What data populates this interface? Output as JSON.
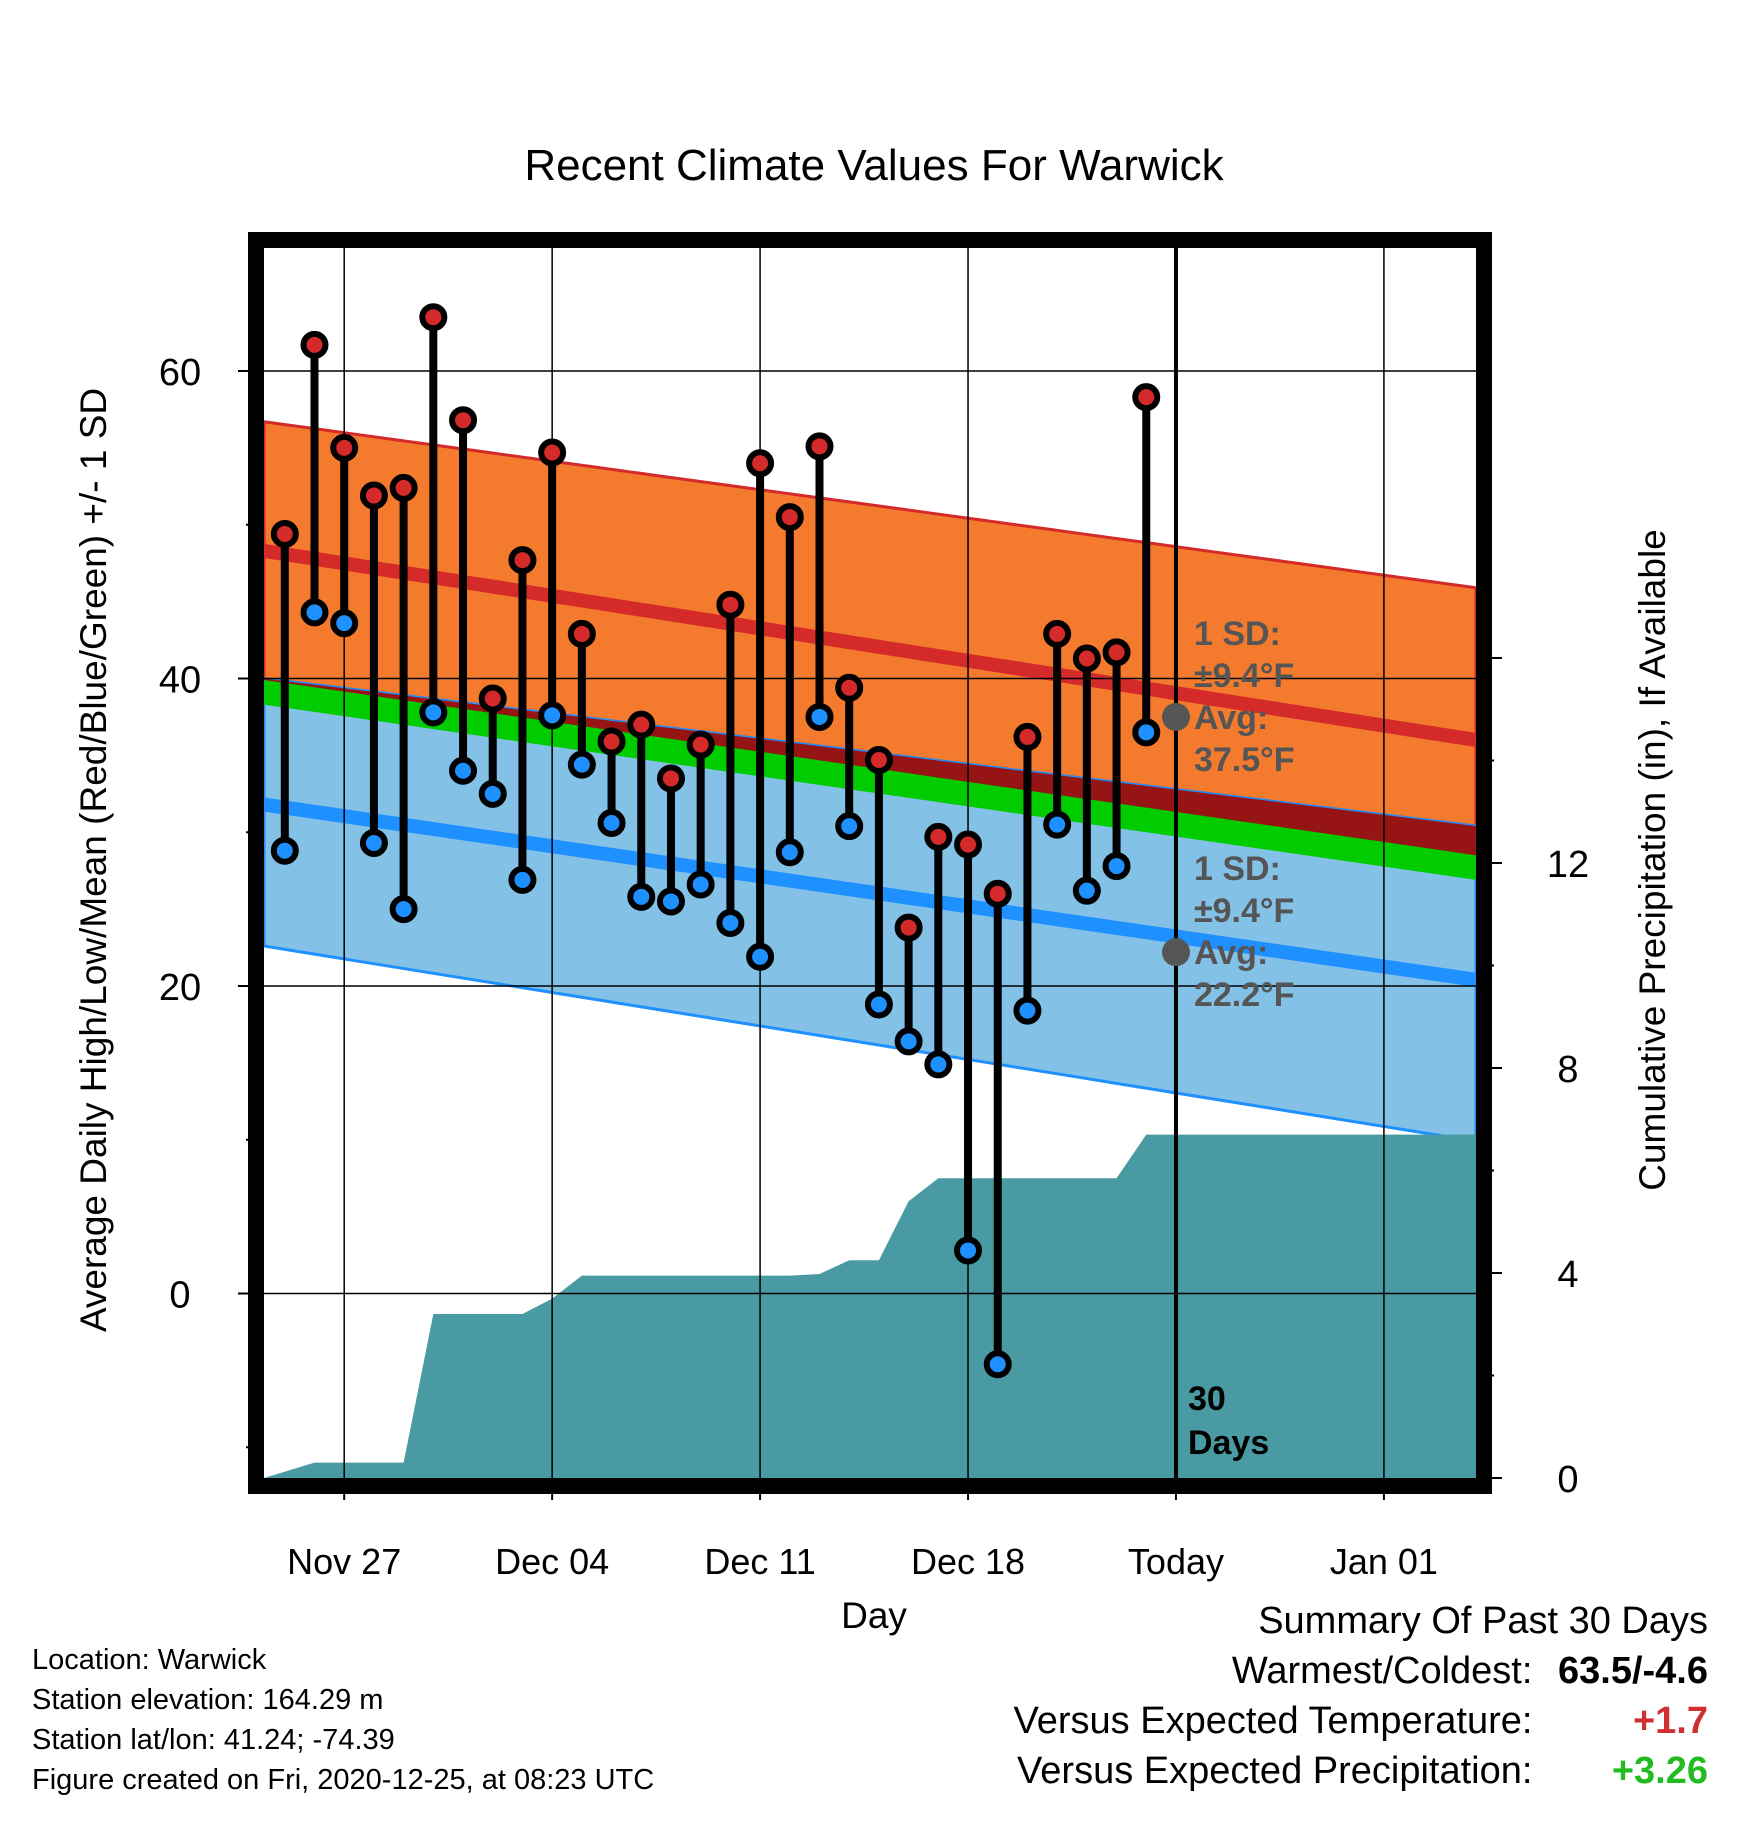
{
  "chart_data": {
    "type": "line",
    "title": "Recent Climate Values For Warwick",
    "xlabel": "Day",
    "ylabel": "Average Daily High/Low/Mean (Red/Blue/Green) +/- 1 SD",
    "y2label": "Cumulative Precipitation (in), If Available",
    "x_tick_labels": [
      "Nov 27",
      "Dec 04",
      "Dec 11",
      "Dec 18",
      "Today",
      "Jan 01"
    ],
    "y_ticks": [
      0,
      20,
      40,
      60
    ],
    "y2_ticks": [
      0,
      4,
      8,
      12
    ],
    "ylim": [
      -12,
      68
    ],
    "y2lim": [
      0,
      24
    ],
    "x_range_days_from_nov27": [
      -2.7,
      38.1
    ],
    "today_day": 28,
    "today_text": "30\nDays",
    "daily": {
      "day": [
        -2,
        -1,
        0,
        1,
        2,
        3,
        4,
        5,
        6,
        7,
        8,
        9,
        10,
        11,
        12,
        13,
        14,
        15,
        16,
        17,
        18,
        19,
        20,
        21,
        22,
        23,
        24,
        25,
        26,
        27
      ],
      "high": [
        49.4,
        61.7,
        55.0,
        51.9,
        52.4,
        63.5,
        56.8,
        38.7,
        47.7,
        54.7,
        42.9,
        35.9,
        37.0,
        33.5,
        35.7,
        44.8,
        54.0,
        50.5,
        55.1,
        39.4,
        34.7,
        23.8,
        29.7,
        29.2,
        26.0,
        36.2,
        42.9,
        41.3,
        41.7,
        58.3
      ],
      "low": [
        28.8,
        44.3,
        43.6,
        29.3,
        25.0,
        37.8,
        34.0,
        32.5,
        26.9,
        37.6,
        34.4,
        30.6,
        25.8,
        25.5,
        26.6,
        24.1,
        21.9,
        28.7,
        37.5,
        30.4,
        18.8,
        16.4,
        14.9,
        2.8,
        -4.6,
        18.4,
        30.5,
        26.2,
        27.8,
        36.5
      ]
    },
    "normals": {
      "day": [
        -2.7,
        38.1
      ],
      "high_avg": [
        48.3,
        36.0
      ],
      "high_upper": [
        56.7,
        45.9
      ],
      "high_lower": [
        40.0,
        30.4
      ],
      "low_avg": [
        31.8,
        20.4
      ],
      "low_upper": [
        40.0,
        30.4
      ],
      "low_lower": [
        22.6,
        9.9
      ],
      "mean_avg": [
        39.2,
        27.8
      ]
    },
    "precip": {
      "day": [
        -2.7,
        -1,
        0,
        1,
        2,
        3,
        4,
        5,
        6,
        7,
        8,
        9,
        10,
        11,
        12,
        13,
        14,
        15,
        16,
        17,
        18,
        19,
        20,
        21,
        22,
        23,
        24,
        25,
        26,
        27,
        28,
        38.1
      ],
      "cumulative": [
        0,
        0.3,
        0.3,
        0.3,
        0.3,
        3.2,
        3.2,
        3.2,
        3.2,
        3.5,
        3.95,
        3.95,
        3.95,
        3.95,
        3.95,
        3.95,
        3.95,
        3.95,
        3.98,
        4.25,
        4.25,
        5.4,
        5.85,
        5.85,
        5.85,
        5.85,
        5.85,
        5.85,
        5.85,
        6.7,
        6.7,
        6.7
      ]
    },
    "annotations": [
      {
        "line1": "1 SD:",
        "line2": "±9.4°F",
        "line3": "Avg:",
        "line4": "37.5°F",
        "value": 37.5
      },
      {
        "line1": "1 SD:",
        "line2": "±9.4°F",
        "line3": "Avg:",
        "line4": "22.2°F",
        "value": 22.2
      }
    ]
  },
  "info": {
    "location": "Location: Warwick",
    "elevation": "Station elevation: 164.29 m",
    "latlon": "Station lat/lon: 41.24; -74.39",
    "created": "Figure created on Fri, 2020-12-25, at 08:23 UTC"
  },
  "summary": {
    "title": "Summary Of Past 30 Days",
    "warm_label": "Warmest/Coldest:",
    "warm_value": "63.5/-4.6",
    "temp_label": "Versus Expected Temperature:",
    "temp_value": "+1.7",
    "precip_label": "Versus Expected Precipitation:",
    "precip_value": "+3.26"
  },
  "colors": {
    "high_band": "#f47a2e",
    "high_line": "#d42a2a",
    "low_band": "#84c1e6",
    "low_line": "#1e90ff",
    "mean_band": "#00cc00",
    "overlap": "#961414",
    "precip": "#4a9aa3",
    "high_dot": "#d42a2a",
    "low_dot": "#1e90ff",
    "annotation": "#555555"
  }
}
